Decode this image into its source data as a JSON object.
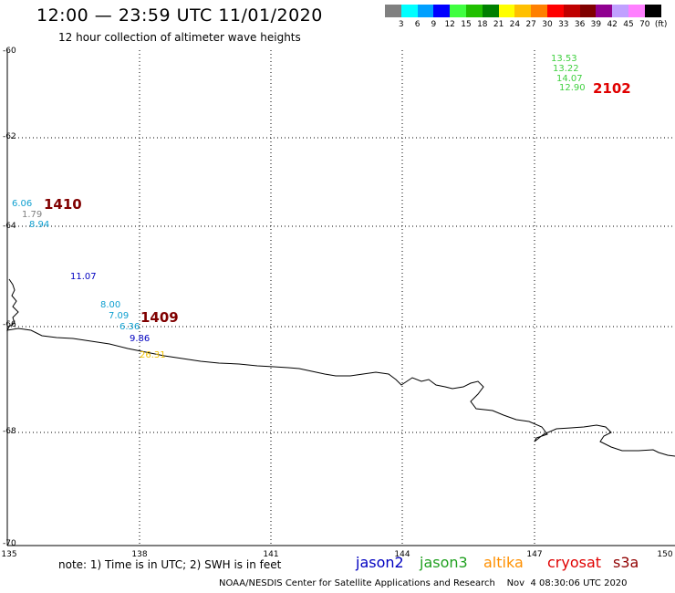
{
  "header": {
    "title": "12:00 — 23:59 UTC 11/01/2020",
    "subtitle": "12 hour collection of altimeter wave heights"
  },
  "colorbar": {
    "colors": [
      "#808080",
      "#00ffff",
      "#00a0ff",
      "#0000ff",
      "#40ff40",
      "#20c000",
      "#008000",
      "#ffff00",
      "#ffc000",
      "#ff8000",
      "#ff0000",
      "#c00000",
      "#800000",
      "#900090",
      "#c0a0ff",
      "#ff80ff",
      "#000000"
    ],
    "labels": [
      "3",
      "6",
      "9",
      "12",
      "15",
      "18",
      "21",
      "24",
      "27",
      "30",
      "33",
      "36",
      "39",
      "42",
      "45",
      "70",
      "(ft)"
    ]
  },
  "map": {
    "lat_ticks": [
      "-60",
      "-62",
      "-64",
      "-66",
      "-68",
      "-70"
    ],
    "lon_ticks": [
      "135",
      "138",
      "141",
      "144",
      "147",
      "150"
    ],
    "passes": [
      {
        "label": "1410",
        "color": "#800000"
      },
      {
        "label": "1409",
        "color": "#800000"
      },
      {
        "label": "2102",
        "color": "#e00000"
      }
    ],
    "wave_heights": [
      {
        "value": "6.06",
        "color": "#10a0d0"
      },
      {
        "value": "1.79",
        "color": "#808080"
      },
      {
        "value": "8.94",
        "color": "#10a0d0"
      },
      {
        "value": "11.07",
        "color": "#0000c0"
      },
      {
        "value": "8.00",
        "color": "#10a0d0"
      },
      {
        "value": "7.09",
        "color": "#10a0d0"
      },
      {
        "value": "6.36",
        "color": "#10a0d0"
      },
      {
        "value": "9.86",
        "color": "#0000c0"
      },
      {
        "value": "26.31",
        "color": "#f0c000"
      },
      {
        "value": "13.53",
        "color": "#40d040"
      },
      {
        "value": "13.22",
        "color": "#40d040"
      },
      {
        "value": "14.07",
        "color": "#40d040"
      },
      {
        "value": "12.90",
        "color": "#40d040"
      }
    ]
  },
  "footer": {
    "note": "note: 1) Time is in UTC; 2) SWH is in feet",
    "legend": [
      {
        "name": "jason2",
        "color": "#0000c0"
      },
      {
        "name": "jason3",
        "color": "#20a020"
      },
      {
        "name": "altika",
        "color": "#ff9000"
      },
      {
        "name": "cryosat",
        "color": "#e00000"
      },
      {
        "name": "s3a",
        "color": "#900000"
      }
    ],
    "credit": "NOAA/NESDIS Center for Satellite Applications and Research    Nov  4 08:30:06 UTC 2020"
  }
}
